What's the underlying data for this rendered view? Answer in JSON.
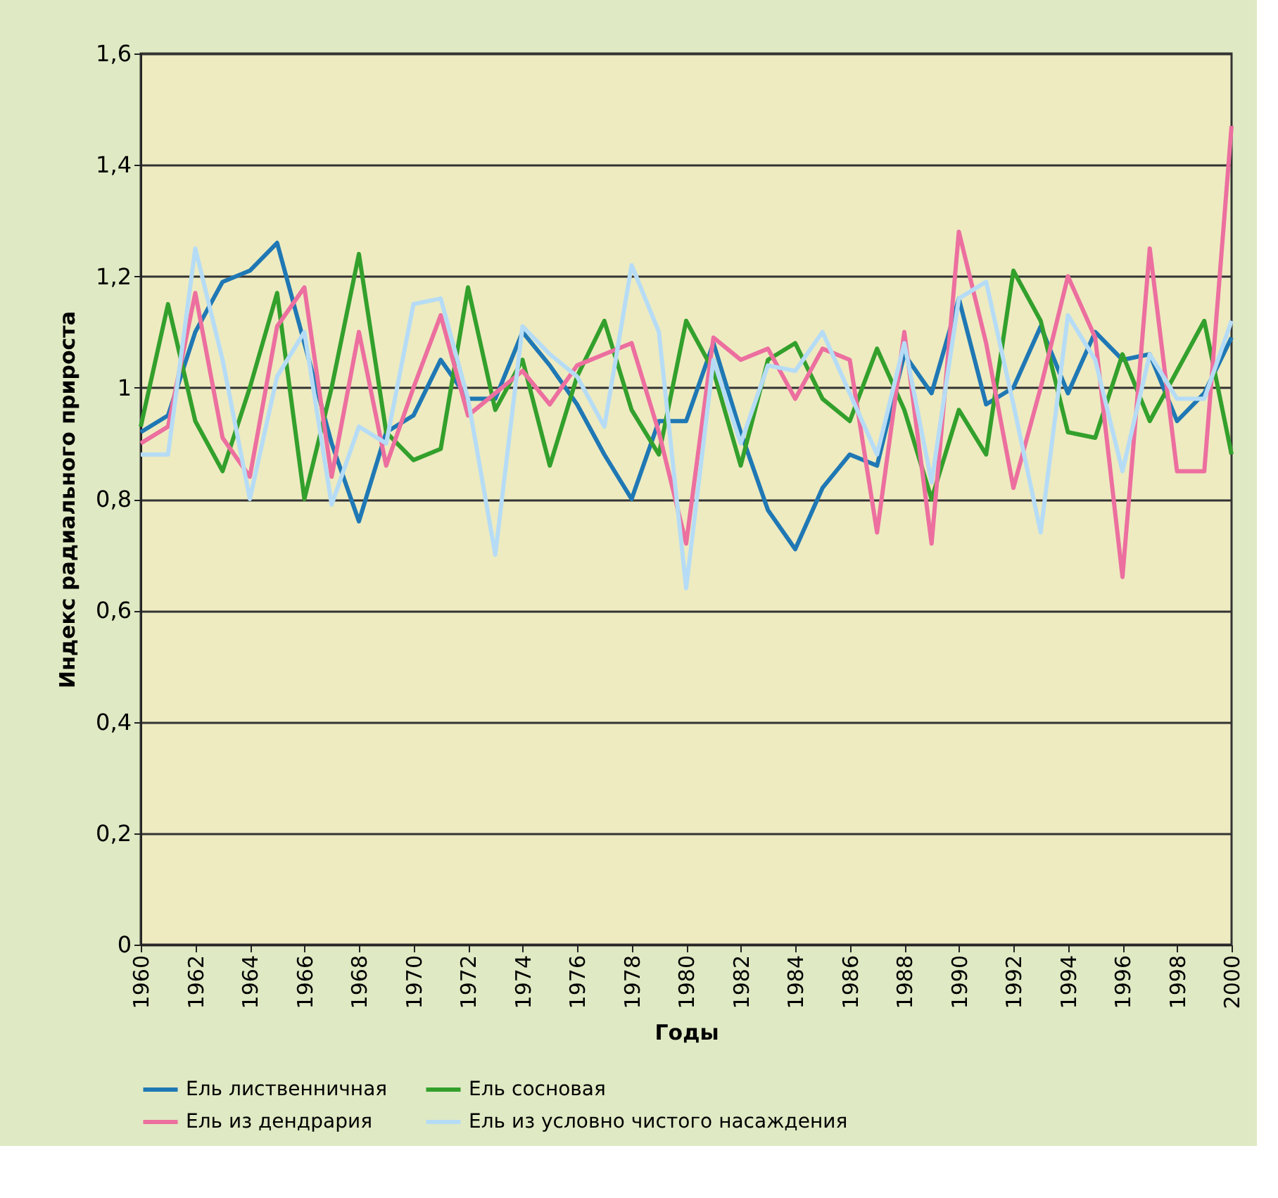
{
  "chart_data": {
    "type": "line",
    "xlabel": "Годы",
    "ylabel": "Индекс радиального прироста",
    "x": [
      1960,
      1961,
      1962,
      1963,
      1964,
      1965,
      1966,
      1967,
      1968,
      1969,
      1970,
      1971,
      1972,
      1973,
      1974,
      1975,
      1976,
      1977,
      1978,
      1979,
      1980,
      1981,
      1982,
      1983,
      1984,
      1985,
      1986,
      1987,
      1988,
      1989,
      1990,
      1991,
      1992,
      1993,
      1994,
      1995,
      1996,
      1997,
      1998,
      1999,
      2000
    ],
    "series": [
      {
        "name": "Ель лиственничная",
        "color": "#1f78b4",
        "values": [
          0.92,
          0.95,
          1.1,
          1.19,
          1.21,
          1.26,
          1.08,
          0.9,
          0.76,
          0.92,
          0.95,
          1.05,
          0.98,
          0.98,
          1.1,
          1.04,
          0.97,
          0.88,
          0.8,
          0.94,
          0.94,
          1.08,
          0.92,
          0.78,
          0.71,
          0.82,
          0.88,
          0.86,
          1.06,
          0.99,
          1.16,
          0.97,
          1.0,
          1.11,
          0.99,
          1.1,
          1.05,
          1.06,
          0.94,
          0.99,
          1.09
        ]
      },
      {
        "name": "Ель сосновая",
        "color": "#33a02c",
        "values": [
          0.93,
          1.15,
          0.94,
          0.85,
          1.0,
          1.17,
          0.8,
          1.0,
          1.24,
          0.92,
          0.87,
          0.89,
          1.18,
          0.96,
          1.05,
          0.86,
          1.02,
          1.12,
          0.96,
          0.88,
          1.12,
          1.03,
          0.86,
          1.05,
          1.08,
          0.98,
          0.94,
          1.07,
          0.96,
          0.8,
          0.96,
          0.88,
          1.21,
          1.12,
          0.92,
          0.91,
          1.06,
          0.94,
          1.03,
          1.12,
          0.88
        ]
      },
      {
        "name": "Ель из дендрария",
        "color": "#ec6f9f",
        "values": [
          0.9,
          0.93,
          1.17,
          0.91,
          0.84,
          1.11,
          1.18,
          0.84,
          1.1,
          0.86,
          1.0,
          1.13,
          0.95,
          0.99,
          1.03,
          0.97,
          1.04,
          1.06,
          1.08,
          0.92,
          0.72,
          1.09,
          1.05,
          1.07,
          0.98,
          1.07,
          1.05,
          0.74,
          1.1,
          0.72,
          1.28,
          1.08,
          0.82,
          1.0,
          1.2,
          1.09,
          0.66,
          1.25,
          0.85,
          0.85,
          1.47
        ]
      },
      {
        "name": "Ель из условно чистого насаждения",
        "color": "#b6dcf5",
        "values": [
          0.88,
          0.88,
          1.25,
          1.05,
          0.8,
          1.02,
          1.1,
          0.79,
          0.93,
          0.9,
          1.15,
          1.16,
          0.98,
          0.7,
          1.11,
          1.06,
          1.02,
          0.93,
          1.22,
          1.1,
          0.64,
          1.05,
          0.9,
          1.04,
          1.03,
          1.1,
          0.99,
          0.88,
          1.08,
          0.83,
          1.16,
          1.19,
          0.97,
          0.74,
          1.13,
          1.05,
          0.85,
          1.06,
          0.98,
          0.98,
          1.12
        ]
      }
    ],
    "xlim": [
      1960,
      2000
    ],
    "xticks": [
      1960,
      1962,
      1964,
      1966,
      1968,
      1970,
      1972,
      1974,
      1976,
      1978,
      1980,
      1982,
      1984,
      1986,
      1988,
      1990,
      1992,
      1994,
      1996,
      1998,
      2000
    ],
    "ylim": [
      0,
      1.6
    ],
    "yticks": [
      0,
      {
        "value": 0.2,
        "label": "0,2"
      },
      {
        "value": 0.4,
        "label": "0,4"
      },
      {
        "value": 0.6,
        "label": "0,6"
      },
      {
        "value": 0.8,
        "label": "0,8"
      },
      1,
      {
        "value": 1.2,
        "label": "1,2"
      },
      {
        "value": 1.4,
        "label": "1,4"
      },
      {
        "value": 1.6,
        "label": "1,6"
      }
    ],
    "grid": "y",
    "legend": "bottom",
    "marker": "none",
    "line_style": "solid"
  }
}
